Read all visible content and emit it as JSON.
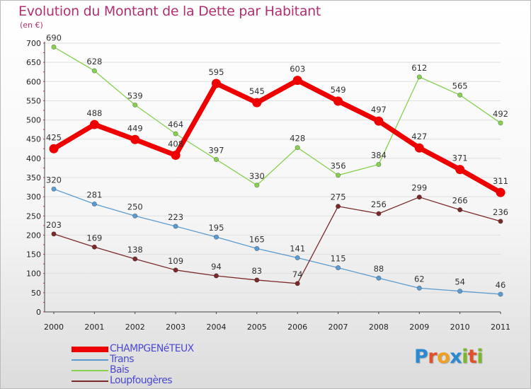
{
  "title": "Evolution du Montant de la Dette par Habitant",
  "subtitle": "(en €)",
  "colors": {
    "title": "#b03070",
    "legend_text": "#4a4ad0",
    "grid": "#dedede",
    "axis": "#444444"
  },
  "logo": {
    "text": "Proxiti",
    "letter_colors": [
      "#2a8ad0",
      "#e0502a",
      "#f0a020",
      "#2a8ad0",
      "#7ab82a",
      "#e0502a",
      "#7ab82a"
    ]
  },
  "chart_data": {
    "type": "line",
    "title": "Evolution du Montant de la Dette par Habitant",
    "subtitle": "(en €)",
    "x": [
      "2000",
      "2001",
      "2002",
      "2003",
      "2004",
      "2005",
      "2006",
      "2007",
      "2008",
      "2009",
      "2010",
      "2011"
    ],
    "ylim": [
      0,
      700
    ],
    "yticks": [
      0,
      50,
      100,
      150,
      200,
      250,
      300,
      350,
      400,
      450,
      500,
      550,
      600,
      650,
      700
    ],
    "grid": true,
    "legend_position": "bottom-left",
    "series": [
      {
        "name": "CHAMPGENéTEUX",
        "color": "#ee0000",
        "emphasis": true,
        "values": [
          425,
          488,
          449,
          408,
          595,
          545,
          603,
          549,
          497,
          427,
          371,
          311
        ]
      },
      {
        "name": "Trans",
        "color": "#5b9bd0",
        "emphasis": false,
        "values": [
          320,
          281,
          250,
          223,
          195,
          165,
          141,
          115,
          88,
          62,
          54,
          46
        ]
      },
      {
        "name": "Bais",
        "color": "#88d050",
        "emphasis": false,
        "values": [
          690,
          628,
          539,
          464,
          397,
          330,
          428,
          356,
          384,
          612,
          565,
          492
        ]
      },
      {
        "name": "Loupfougères",
        "color": "#7a2a2a",
        "emphasis": false,
        "values": [
          203,
          169,
          138,
          109,
          94,
          83,
          74,
          275,
          256,
          299,
          266,
          236
        ]
      }
    ]
  }
}
